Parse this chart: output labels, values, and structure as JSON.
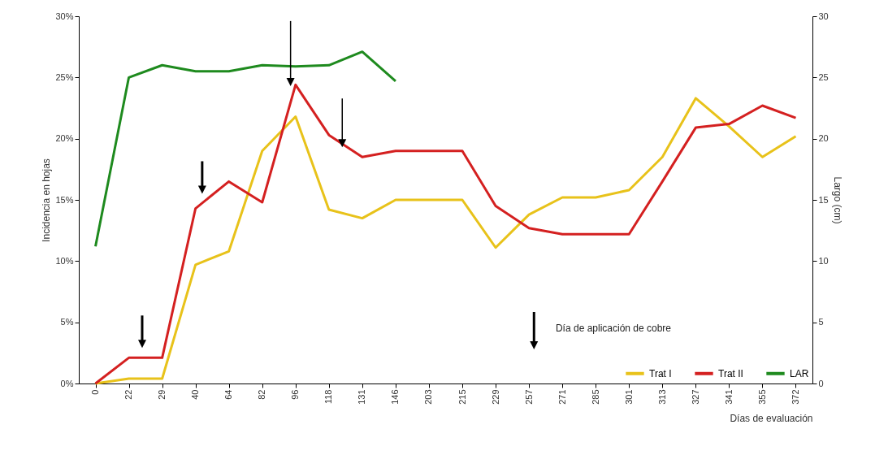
{
  "chart_data": {
    "type": "line",
    "xlabel": "Días de evaluación",
    "ylabel": "Incidencia en hojas",
    "y2label": "Largo (cm)",
    "categories": [
      "0",
      "22",
      "29",
      "40",
      "64",
      "82",
      "96",
      "118",
      "131",
      "146",
      "203",
      "215",
      "229",
      "257",
      "271",
      "285",
      "301",
      "313",
      "327",
      "341",
      "355",
      "372"
    ],
    "series": [
      {
        "name": "Trat I",
        "color": "#e8c21a",
        "values": [
          0,
          0.4,
          0.4,
          9.7,
          10.8,
          19,
          21.8,
          14.2,
          13.5,
          15,
          15,
          15,
          11.1,
          13.8,
          15.2,
          15.2,
          15.8,
          18.5,
          23.3,
          21,
          18.5,
          20.2
        ]
      },
      {
        "name": "Trat II",
        "color": "#d42020",
        "values": [
          0,
          2.1,
          2.1,
          14.3,
          16.5,
          14.8,
          24.4,
          20.3,
          18.5,
          19,
          19,
          19,
          14.5,
          12.7,
          12.2,
          12.2,
          12.2,
          16.5,
          20.9,
          21.2,
          22.7,
          21.7
        ]
      },
      {
        "name": "LAR",
        "color": "#1e8a1e",
        "axis": "y2",
        "values": [
          11.2,
          25,
          26,
          25.5,
          25.5,
          26,
          25.9,
          26,
          27.1,
          24.7,
          null,
          null,
          null,
          null,
          null,
          null,
          null,
          null,
          null,
          null,
          null,
          null
        ]
      }
    ],
    "ylim": [
      0,
      30
    ],
    "yticks": [
      {
        "value": 0,
        "label": "0%"
      },
      {
        "value": 5,
        "label": "5%"
      },
      {
        "value": 10,
        "label": "10%"
      },
      {
        "value": 15,
        "label": "15%"
      },
      {
        "value": 20,
        "label": "20%"
      },
      {
        "value": 25,
        "label": "25%"
      },
      {
        "value": 30,
        "label": "30%"
      }
    ],
    "y2lim": [
      0,
      30
    ],
    "y2ticks": [
      0,
      5,
      10,
      15,
      20,
      25,
      30
    ],
    "annotations": [
      "Día de aplicación de cobre"
    ],
    "legend": "bottom right",
    "grid": false,
    "marker": "none",
    "line_style": "solid"
  }
}
